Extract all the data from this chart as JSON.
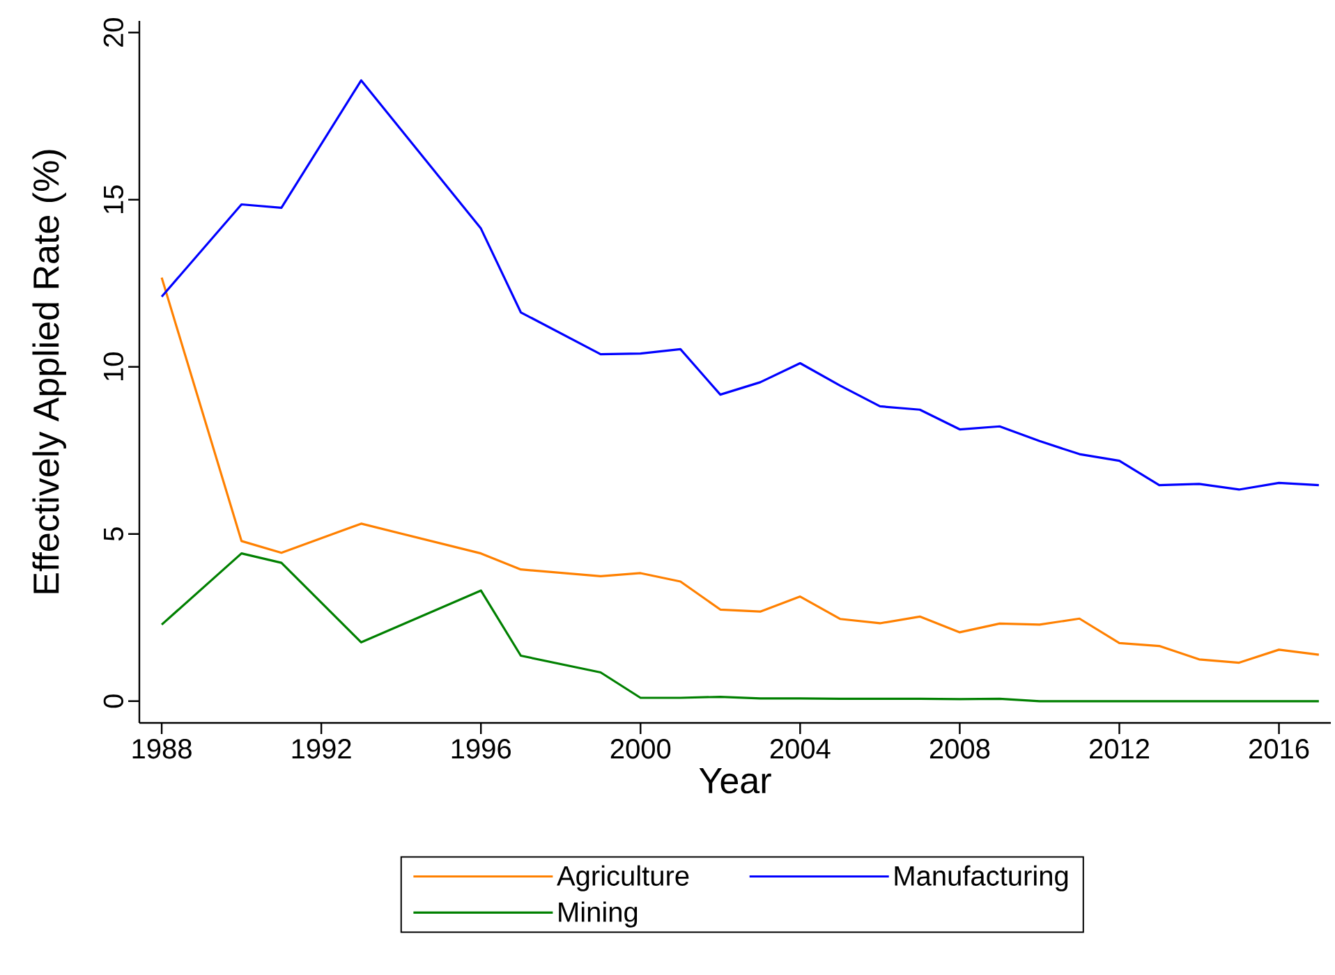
{
  "chart_data": {
    "type": "line",
    "xlabel": "Year",
    "ylabel": "Effectively Applied Rate (%)",
    "x": [
      1988,
      1990,
      1991,
      1993,
      1996,
      1997,
      1999,
      2000,
      2001,
      2002,
      2003,
      2004,
      2005,
      2006,
      2007,
      2008,
      2009,
      2010,
      2011,
      2012,
      2013,
      2014,
      2015,
      2016,
      2017
    ],
    "series": [
      {
        "name": "Agriculture",
        "color": "#ff8000",
        "values": [
          12.67,
          4.79,
          4.44,
          5.31,
          4.42,
          3.94,
          3.74,
          3.83,
          3.58,
          2.74,
          2.68,
          3.13,
          2.46,
          2.33,
          2.53,
          2.06,
          2.32,
          2.29,
          2.47,
          1.74,
          1.65,
          1.25,
          1.15,
          1.54,
          1.39
        ]
      },
      {
        "name": "Manufacturing",
        "color": "#0000ff",
        "values": [
          12.1,
          14.86,
          14.76,
          18.57,
          14.14,
          11.63,
          10.38,
          10.4,
          10.53,
          9.17,
          9.54,
          10.11,
          9.44,
          8.82,
          8.72,
          8.13,
          8.22,
          7.78,
          7.39,
          7.19,
          6.46,
          6.5,
          6.33,
          6.53,
          6.46
        ]
      },
      {
        "name": "Mining",
        "color": "#008000",
        "values": [
          2.29,
          4.42,
          4.14,
          1.76,
          3.31,
          1.36,
          0.86,
          0.1,
          0.1,
          0.13,
          0.08,
          0.08,
          0.07,
          0.07,
          0.07,
          0.06,
          0.07,
          0,
          0,
          0,
          0,
          0,
          0,
          0,
          0
        ]
      }
    ],
    "xlim": [
      1987.44,
      2017.3
    ],
    "ylim": [
      -0.65,
      20.35
    ],
    "xticks": [
      1988,
      1992,
      1996,
      2000,
      2004,
      2008,
      2012,
      2016
    ],
    "yticks": [
      0,
      5,
      10,
      15,
      20
    ],
    "legend": "bottom"
  }
}
